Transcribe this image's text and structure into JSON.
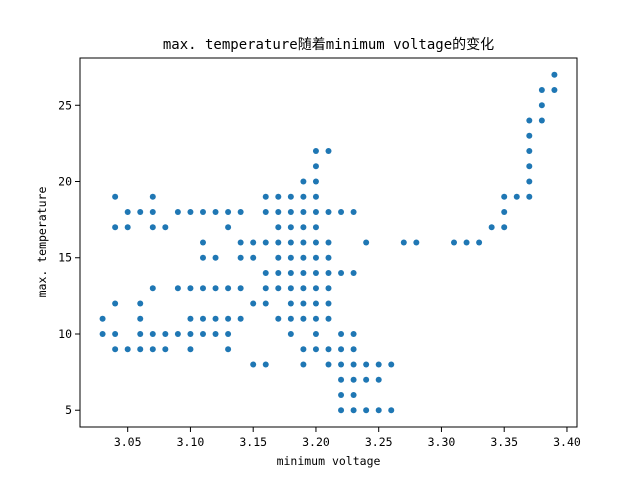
{
  "chart_data": {
    "type": "scatter",
    "title": "max. temperature随着minimum voltage的变化",
    "xlabel": "minimum voltage",
    "ylabel": "max. temperature",
    "xlim": [
      3.012,
      3.408
    ],
    "ylim": [
      3.9,
      28.1
    ],
    "xticks": [
      "3.05",
      "3.10",
      "3.15",
      "3.20",
      "3.25",
      "3.30",
      "3.35",
      "3.40"
    ],
    "yticks": [
      "5",
      "10",
      "15",
      "20",
      "25"
    ],
    "grid": false,
    "marker_color": "#1f77b4",
    "points": [
      [
        3.03,
        11
      ],
      [
        3.03,
        10
      ],
      [
        3.04,
        19
      ],
      [
        3.04,
        17
      ],
      [
        3.04,
        12
      ],
      [
        3.04,
        10
      ],
      [
        3.04,
        9
      ],
      [
        3.05,
        18
      ],
      [
        3.05,
        17
      ],
      [
        3.05,
        9
      ],
      [
        3.06,
        18
      ],
      [
        3.06,
        12
      ],
      [
        3.06,
        11
      ],
      [
        3.06,
        10
      ],
      [
        3.06,
        9
      ],
      [
        3.07,
        19
      ],
      [
        3.07,
        18
      ],
      [
        3.07,
        17
      ],
      [
        3.07,
        13
      ],
      [
        3.07,
        10
      ],
      [
        3.07,
        9
      ],
      [
        3.08,
        17
      ],
      [
        3.08,
        10
      ],
      [
        3.08,
        9
      ],
      [
        3.09,
        18
      ],
      [
        3.09,
        13
      ],
      [
        3.09,
        10
      ],
      [
        3.1,
        18
      ],
      [
        3.1,
        13
      ],
      [
        3.1,
        11
      ],
      [
        3.1,
        10
      ],
      [
        3.1,
        9
      ],
      [
        3.11,
        18
      ],
      [
        3.11,
        16
      ],
      [
        3.11,
        15
      ],
      [
        3.11,
        13
      ],
      [
        3.11,
        11
      ],
      [
        3.11,
        10
      ],
      [
        3.12,
        18
      ],
      [
        3.12,
        15
      ],
      [
        3.12,
        13
      ],
      [
        3.12,
        11
      ],
      [
        3.12,
        10
      ],
      [
        3.13,
        18
      ],
      [
        3.13,
        17
      ],
      [
        3.13,
        13
      ],
      [
        3.13,
        11
      ],
      [
        3.13,
        10
      ],
      [
        3.13,
        9
      ],
      [
        3.14,
        18
      ],
      [
        3.14,
        16
      ],
      [
        3.14,
        15
      ],
      [
        3.14,
        13
      ],
      [
        3.14,
        11
      ],
      [
        3.15,
        16
      ],
      [
        3.15,
        15
      ],
      [
        3.15,
        12
      ],
      [
        3.15,
        8
      ],
      [
        3.16,
        19
      ],
      [
        3.16,
        18
      ],
      [
        3.16,
        16
      ],
      [
        3.16,
        14
      ],
      [
        3.16,
        13
      ],
      [
        3.16,
        12
      ],
      [
        3.16,
        8
      ],
      [
        3.17,
        19
      ],
      [
        3.17,
        18
      ],
      [
        3.17,
        17
      ],
      [
        3.17,
        16
      ],
      [
        3.17,
        15
      ],
      [
        3.17,
        14
      ],
      [
        3.17,
        13
      ],
      [
        3.17,
        11
      ],
      [
        3.18,
        19
      ],
      [
        3.18,
        18
      ],
      [
        3.18,
        17
      ],
      [
        3.18,
        16
      ],
      [
        3.18,
        15
      ],
      [
        3.18,
        14
      ],
      [
        3.18,
        13
      ],
      [
        3.18,
        12
      ],
      [
        3.18,
        11
      ],
      [
        3.18,
        10
      ],
      [
        3.19,
        20
      ],
      [
        3.19,
        19
      ],
      [
        3.19,
        18
      ],
      [
        3.19,
        17
      ],
      [
        3.19,
        16
      ],
      [
        3.19,
        15
      ],
      [
        3.19,
        14
      ],
      [
        3.19,
        13
      ],
      [
        3.19,
        12
      ],
      [
        3.19,
        11
      ],
      [
        3.19,
        9
      ],
      [
        3.19,
        8
      ],
      [
        3.2,
        22
      ],
      [
        3.2,
        21
      ],
      [
        3.2,
        20
      ],
      [
        3.2,
        19
      ],
      [
        3.2,
        18
      ],
      [
        3.2,
        17
      ],
      [
        3.2,
        16
      ],
      [
        3.2,
        15
      ],
      [
        3.2,
        14
      ],
      [
        3.2,
        13
      ],
      [
        3.2,
        12
      ],
      [
        3.2,
        11
      ],
      [
        3.2,
        10
      ],
      [
        3.2,
        9
      ],
      [
        3.21,
        22
      ],
      [
        3.21,
        18
      ],
      [
        3.21,
        16
      ],
      [
        3.21,
        15
      ],
      [
        3.21,
        14
      ],
      [
        3.21,
        13
      ],
      [
        3.21,
        12
      ],
      [
        3.21,
        11
      ],
      [
        3.21,
        9
      ],
      [
        3.21,
        8
      ],
      [
        3.22,
        18
      ],
      [
        3.22,
        14
      ],
      [
        3.22,
        10
      ],
      [
        3.22,
        9
      ],
      [
        3.22,
        8
      ],
      [
        3.22,
        7
      ],
      [
        3.22,
        6
      ],
      [
        3.22,
        5
      ],
      [
        3.23,
        18
      ],
      [
        3.23,
        14
      ],
      [
        3.23,
        10
      ],
      [
        3.23,
        9
      ],
      [
        3.23,
        8
      ],
      [
        3.23,
        7
      ],
      [
        3.23,
        6
      ],
      [
        3.23,
        5
      ],
      [
        3.24,
        16
      ],
      [
        3.24,
        8
      ],
      [
        3.24,
        7
      ],
      [
        3.24,
        5
      ],
      [
        3.25,
        8
      ],
      [
        3.25,
        7
      ],
      [
        3.25,
        5
      ],
      [
        3.26,
        8
      ],
      [
        3.26,
        5
      ],
      [
        3.27,
        16
      ],
      [
        3.28,
        16
      ],
      [
        3.31,
        16
      ],
      [
        3.32,
        16
      ],
      [
        3.33,
        16
      ],
      [
        3.34,
        17
      ],
      [
        3.35,
        19
      ],
      [
        3.35,
        18
      ],
      [
        3.35,
        17
      ],
      [
        3.36,
        19
      ],
      [
        3.37,
        24
      ],
      [
        3.37,
        23
      ],
      [
        3.37,
        22
      ],
      [
        3.37,
        21
      ],
      [
        3.37,
        20
      ],
      [
        3.37,
        19
      ],
      [
        3.38,
        26
      ],
      [
        3.38,
        25
      ],
      [
        3.38,
        24
      ],
      [
        3.39,
        27
      ],
      [
        3.39,
        26
      ]
    ]
  }
}
